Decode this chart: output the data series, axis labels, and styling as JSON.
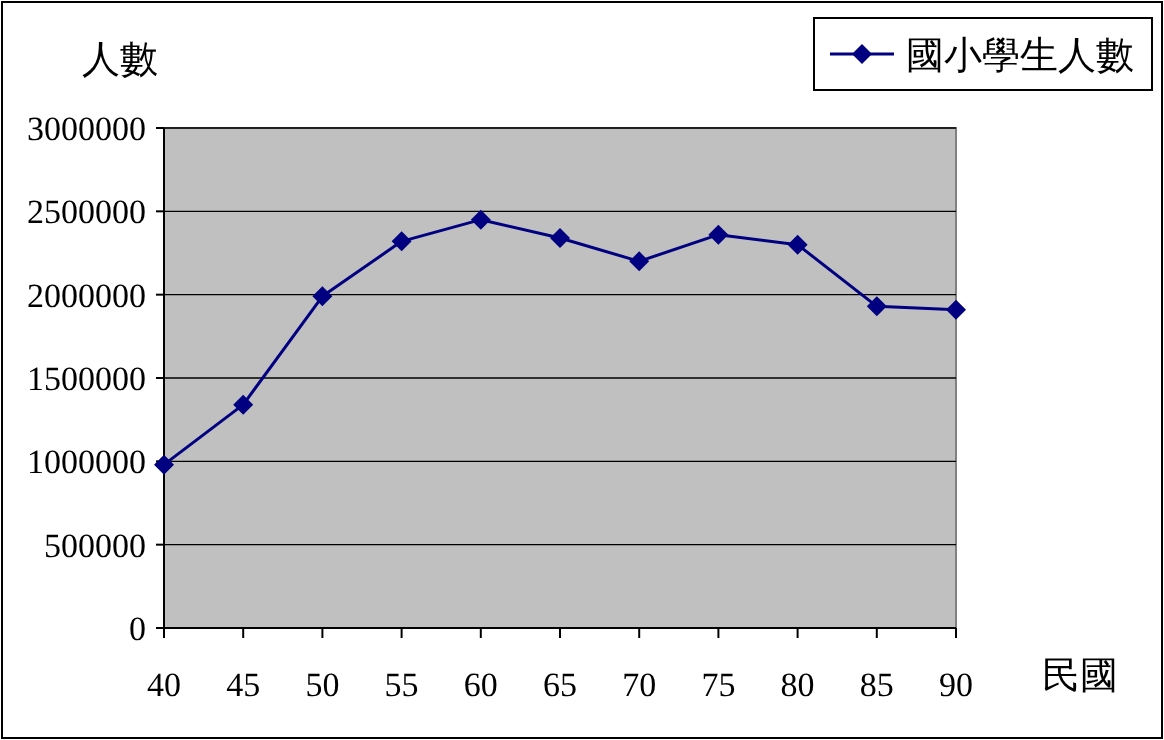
{
  "chart_data": {
    "type": "line",
    "xlabel": "民國",
    "ylabel": "人數",
    "categories": [
      "40",
      "45",
      "50",
      "55",
      "60",
      "65",
      "70",
      "75",
      "80",
      "85",
      "90"
    ],
    "series": [
      {
        "name": "國小學生人數",
        "color": "#000080",
        "values": [
          980000,
          1340000,
          1990000,
          2320000,
          2450000,
          2340000,
          2200000,
          2360000,
          2300000,
          1930000,
          1910000
        ]
      }
    ],
    "ylim": [
      0,
      3000000
    ],
    "yticks": [
      0,
      500000,
      1000000,
      1500000,
      2000000,
      2500000,
      3000000
    ],
    "grid": "y",
    "legend": "top right",
    "marker": "diamond",
    "line_style": "solid"
  }
}
